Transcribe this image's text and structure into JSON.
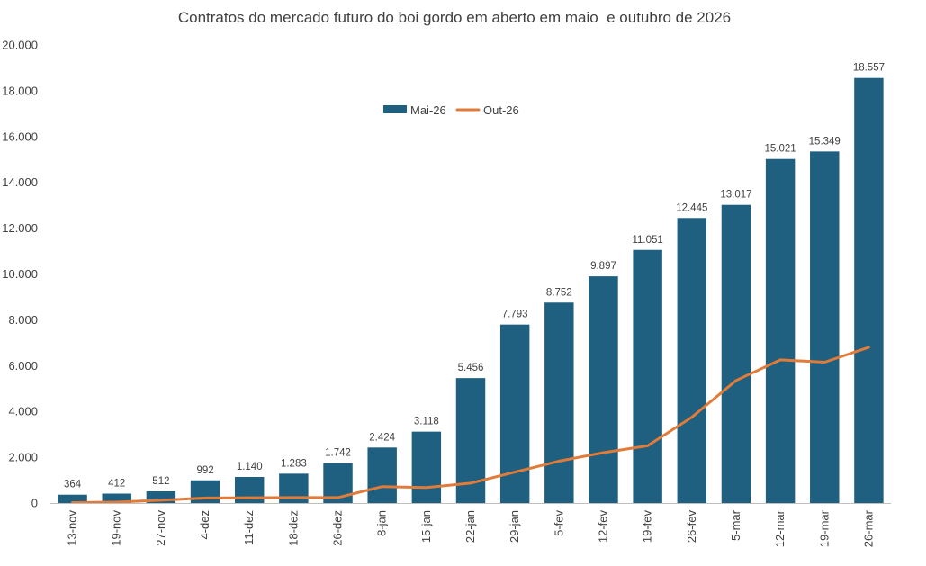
{
  "chart_data": {
    "type": "bar",
    "title": "Contratos do mercado futuro do boi gordo em aberto em maio  e outubro de 2026",
    "xlabel": "",
    "ylabel": "",
    "categories": [
      "13-nov",
      "19-nov",
      "27-nov",
      "4-dez",
      "11-dez",
      "18-dez",
      "26-dez",
      "8-jan",
      "15-jan",
      "22-jan",
      "29-jan",
      "5-fev",
      "12-fev",
      "19-fev",
      "26-fev",
      "5-mar",
      "12-mar",
      "19-mar",
      "26-mar"
    ],
    "series": [
      {
        "name": "Mai-26",
        "kind": "bar",
        "color": "#1f5f80",
        "values": [
          364,
          412,
          512,
          992,
          1140,
          1283,
          1742,
          2424,
          3118,
          5456,
          7793,
          8752,
          9897,
          11051,
          12445,
          13017,
          15021,
          15349,
          18557
        ],
        "value_labels": [
          "364",
          "412",
          "512",
          "992",
          "1.140",
          "1.283",
          "1.742",
          "2.424",
          "3.118",
          "5.456",
          "7.793",
          "8.752",
          "9.897",
          "11.051",
          "12.445",
          "13.017",
          "15.021",
          "15.349",
          "18.557"
        ]
      },
      {
        "name": "Out-26",
        "kind": "line",
        "color": "#e07b39",
        "values": [
          20,
          40,
          120,
          220,
          230,
          240,
          240,
          720,
          680,
          870,
          1350,
          1830,
          2200,
          2500,
          3750,
          5350,
          6250,
          6150,
          6800
        ]
      }
    ],
    "ylim": [
      0,
      20000
    ],
    "yticks": [
      0,
      2000,
      4000,
      6000,
      8000,
      10000,
      12000,
      14000,
      16000,
      18000,
      20000
    ],
    "ytick_labels": [
      "0",
      "2.000",
      "4.000",
      "6.000",
      "8.000",
      "10.000",
      "12.000",
      "14.000",
      "16.000",
      "18.000",
      "20.000"
    ],
    "grid": false,
    "legend_position": "top-center"
  }
}
